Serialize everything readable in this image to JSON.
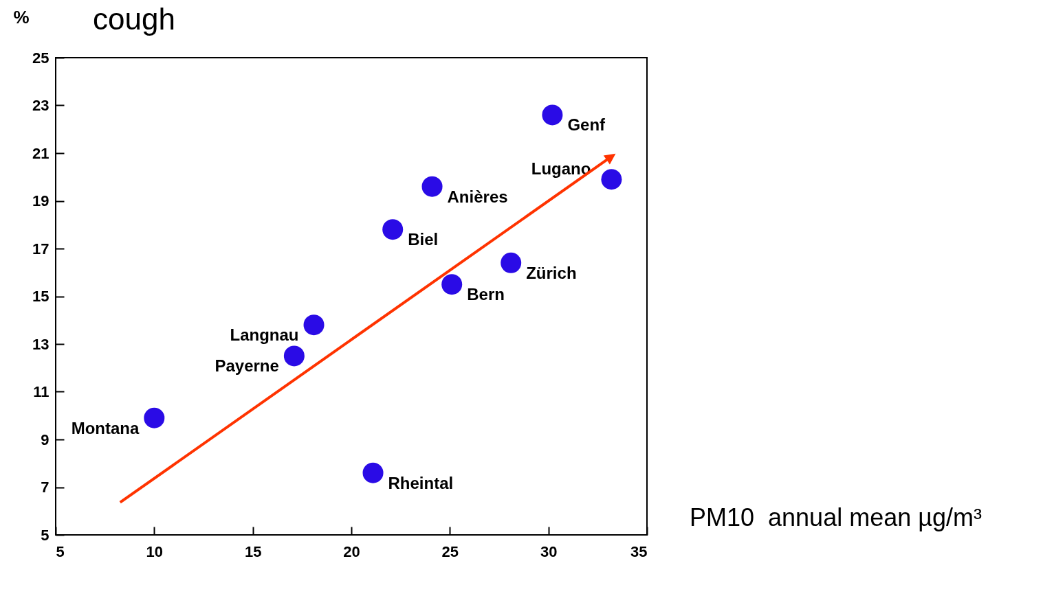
{
  "chart_data": {
    "type": "scatter",
    "title": "cough",
    "ylabel": "%",
    "xlabel": "PM10  annual mean µg/m³",
    "xlim": [
      5,
      35
    ],
    "xticks": [
      5,
      10,
      15,
      20,
      25,
      30,
      35
    ],
    "ylim": [
      5,
      25
    ],
    "yticks": [
      5,
      7,
      9,
      11,
      13,
      15,
      17,
      19,
      21,
      23,
      25
    ],
    "grid": false,
    "marker": "circle",
    "series": [
      {
        "color": "#2a0be6",
        "x": [
          30.2,
          33.2,
          24.1,
          22.1,
          28.1,
          25.1,
          18.1,
          17.1,
          10,
          21.1
        ],
        "values": [
          22.6,
          19.9,
          19.6,
          17.8,
          16.4,
          15.5,
          13.8,
          12.5,
          9.9,
          7.6
        ]
      }
    ],
    "annotations": [
      {
        "text": "Genf",
        "x": 30.2,
        "y": 22.6
      },
      {
        "text": "Lugano",
        "x": 33.2,
        "y": 19.9
      },
      {
        "text": "Anières",
        "x": 24.1,
        "y": 19.6
      },
      {
        "text": "Biel",
        "x": 22.1,
        "y": 17.8
      },
      {
        "text": "Zürich",
        "x": 28.1,
        "y": 16.4
      },
      {
        "text": "Bern",
        "x": 25.1,
        "y": 15.5
      },
      {
        "text": "Langnau",
        "x": 18.1,
        "y": 13.8
      },
      {
        "text": "Payerne",
        "x": 17.1,
        "y": 12.5
      },
      {
        "text": "Montana",
        "x": 10,
        "y": 9.9
      },
      {
        "text": "Rheintal",
        "x": 21.1,
        "y": 7.6
      }
    ]
  }
}
